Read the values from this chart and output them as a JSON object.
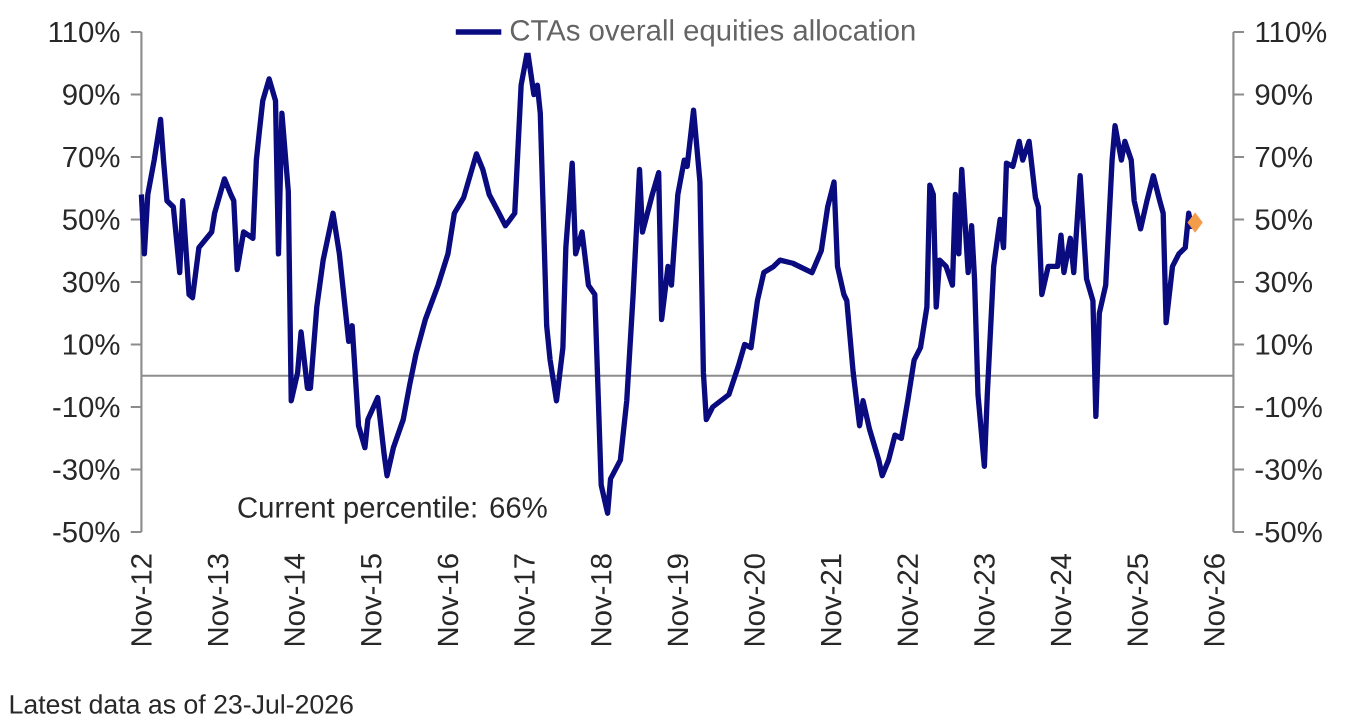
{
  "chart_data": {
    "type": "line",
    "legend": "top",
    "series": [
      {
        "name": "CTAs overall equities allocation",
        "color": "#0b0b80",
        "x": [
          "2012-11-01",
          "2012-11-15",
          "2012-12-01",
          "2013-01-01",
          "2013-02-01",
          "2013-02-15",
          "2013-03-01",
          "2013-04-01",
          "2013-05-01",
          "2013-05-15",
          "2013-06-15",
          "2013-07-01",
          "2013-08-01",
          "2013-10-01",
          "2013-10-15",
          "2013-12-01",
          "2014-01-01",
          "2014-01-15",
          "2014-02-01",
          "2014-03-01",
          "2014-04-15",
          "2014-05-01",
          "2014-05-15",
          "2014-06-01",
          "2014-07-01",
          "2014-08-01",
          "2014-08-15",
          "2014-09-01",
          "2014-10-01",
          "2014-10-15",
          "2014-11-15",
          "2014-12-01",
          "2015-01-01",
          "2015-01-15",
          "2015-02-15",
          "2015-03-15",
          "2015-05-01",
          "2015-06-01",
          "2015-07-15",
          "2015-08-01",
          "2015-09-01",
          "2015-10-01",
          "2015-10-15",
          "2015-12-01",
          "2016-01-01",
          "2016-01-15",
          "2016-02-15",
          "2016-04-01",
          "2016-05-01",
          "2016-06-01",
          "2016-07-15",
          "2016-09-15",
          "2016-11-01",
          "2016-12-01",
          "2017-01-15",
          "2017-02-15",
          "2017-03-15",
          "2017-04-15",
          "2017-05-15",
          "2017-07-01",
          "2017-08-01",
          "2017-09-15",
          "2017-10-15",
          "2017-11-15",
          "2017-12-15",
          "2018-01-01",
          "2018-01-15",
          "2018-02-15",
          "2018-03-01",
          "2018-04-01",
          "2018-05-01",
          "2018-05-15",
          "2018-06-15",
          "2018-07-01",
          "2018-08-01",
          "2018-09-01",
          "2018-10-01",
          "2018-11-01",
          "2018-12-01",
          "2018-12-15",
          "2019-02-01",
          "2019-03-01",
          "2019-04-01",
          "2019-05-01",
          "2019-05-15",
          "2019-07-01",
          "2019-08-01",
          "2019-08-15",
          "2019-09-15",
          "2019-10-01",
          "2019-11-01",
          "2019-12-01",
          "2019-12-15",
          "2020-01-15",
          "2020-02-15",
          "2020-03-01",
          "2020-03-15",
          "2020-04-15",
          "2020-07-01",
          "2020-08-15",
          "2020-09-15",
          "2020-10-15",
          "2020-11-15",
          "2020-12-15",
          "2021-02-01",
          "2021-03-01",
          "2021-05-01",
          "2021-08-01",
          "2021-09-15",
          "2021-10-15",
          "2021-11-15",
          "2021-12-01",
          "2022-01-01",
          "2022-01-15",
          "2022-02-15",
          "2022-03-15",
          "2022-04-01",
          "2022-05-01",
          "2022-06-15",
          "2022-07-01",
          "2022-08-01",
          "2022-09-01",
          "2022-10-01",
          "2022-11-01",
          "2022-12-01",
          "2023-01-01",
          "2023-02-01",
          "2023-02-15",
          "2023-03-01",
          "2023-03-15",
          "2023-04-01",
          "2023-05-01",
          "2023-06-01",
          "2023-06-15",
          "2023-07-01",
          "2023-07-15",
          "2023-08-15",
          "2023-09-01",
          "2023-09-15",
          "2023-10-01",
          "2023-11-01",
          "2023-11-15",
          "2023-12-15",
          "2024-01-15",
          "2024-02-01",
          "2024-02-15",
          "2024-03-15",
          "2024-04-15",
          "2024-05-01",
          "2024-06-01",
          "2024-07-01",
          "2024-07-15",
          "2024-08-01",
          "2024-09-01",
          "2024-10-15",
          "2024-11-01",
          "2024-11-15",
          "2024-12-15",
          "2025-01-01",
          "2025-02-01",
          "2025-03-01",
          "2025-04-01",
          "2025-04-15",
          "2025-05-01",
          "2025-06-01",
          "2025-07-01",
          "2025-07-15",
          "2025-08-15",
          "2025-09-01",
          "2025-10-01",
          "2025-10-15",
          "2025-11-15",
          "2025-12-15",
          "2026-01-15",
          "2026-02-15",
          "2026-03-01",
          "2026-03-15",
          "2026-04-15",
          "2026-05-15",
          "2026-06-15",
          "2026-07-01",
          "2026-07-15"
        ],
        "values": [
          58,
          39,
          58,
          69,
          82,
          69,
          56,
          54,
          33,
          56,
          26,
          25,
          41,
          46,
          52,
          63,
          58,
          56,
          34,
          46,
          44,
          69,
          78,
          88,
          95,
          88,
          39,
          84,
          59,
          -8,
          1,
          14,
          -4,
          -4,
          22,
          37,
          52,
          39,
          11,
          16,
          -16,
          -23,
          -14,
          -7,
          -25,
          -32,
          -23,
          -14,
          -3,
          7,
          18,
          29,
          39,
          52,
          57,
          64,
          71,
          66,
          58,
          52,
          48,
          52,
          93,
          104,
          90,
          93,
          84,
          16,
          5,
          -8,
          9,
          41,
          68,
          39,
          46,
          29,
          26,
          -35,
          -44,
          -33,
          -27,
          -8,
          26,
          66,
          46,
          58,
          65,
          18,
          35,
          29,
          58,
          69,
          67,
          85,
          62,
          1,
          -14,
          -10,
          -6,
          3,
          10,
          9,
          24,
          33,
          35,
          37,
          36,
          33,
          40,
          54,
          62,
          35,
          26,
          24,
          1,
          -16,
          -8,
          -17,
          -27,
          -32,
          -27,
          -19,
          -20,
          -8,
          5,
          9,
          22,
          61,
          58,
          22,
          37,
          35,
          29,
          58,
          39,
          66,
          33,
          48,
          31,
          -6,
          -29,
          -6,
          35,
          50,
          41,
          68,
          67,
          75,
          69,
          75,
          57,
          54,
          26,
          35,
          35,
          45,
          33,
          44,
          33,
          64,
          31,
          24,
          -13,
          20,
          29,
          69,
          80,
          69,
          75,
          69,
          56,
          47,
          56,
          64,
          56,
          52,
          17,
          35,
          39,
          41,
          52,
          47
        ]
      },
      {
        "type": "scatter",
        "marker": "diamond",
        "color": "#f39c4a",
        "x": [
          "2026-08-01"
        ],
        "values": [
          49
        ]
      }
    ],
    "xlim": [
      "2012-11",
      "2027-02"
    ],
    "xticks": [
      {
        "value": "2012-11",
        "label": "Nov-12"
      },
      {
        "value": "2013-11",
        "label": "Nov-13"
      },
      {
        "value": "2014-11",
        "label": "Nov-14"
      },
      {
        "value": "2015-11",
        "label": "Nov-15"
      },
      {
        "value": "2016-11",
        "label": "Nov-16"
      },
      {
        "value": "2017-11",
        "label": "Nov-17"
      },
      {
        "value": "2018-11",
        "label": "Nov-18"
      },
      {
        "value": "2019-11",
        "label": "Nov-19"
      },
      {
        "value": "2020-11",
        "label": "Nov-20"
      },
      {
        "value": "2021-11",
        "label": "Nov-21"
      },
      {
        "value": "2022-11",
        "label": "Nov-22"
      },
      {
        "value": "2023-11",
        "label": "Nov-23"
      },
      {
        "value": "2024-11",
        "label": "Nov-24"
      },
      {
        "value": "2025-11",
        "label": "Nov-25"
      },
      {
        "value": "2026-11",
        "label": "Nov-26"
      }
    ],
    "ylim": [
      -50,
      110
    ],
    "yticks": [
      {
        "value": -50,
        "label": "-50%"
      },
      {
        "value": -30,
        "label": "-30%"
      },
      {
        "value": -10,
        "label": "-10%"
      },
      {
        "value": 10,
        "label": "10%"
      },
      {
        "value": 30,
        "label": "30%"
      },
      {
        "value": 50,
        "label": "50%"
      },
      {
        "value": 70,
        "label": "70%"
      },
      {
        "value": 90,
        "label": "90%"
      },
      {
        "value": 110,
        "label": "110%"
      }
    ],
    "y2lim": [
      -50,
      110
    ],
    "y2ticks": [
      {
        "value": -50,
        "label": "-50%"
      },
      {
        "value": -30,
        "label": "-30%"
      },
      {
        "value": -10,
        "label": "-10%"
      },
      {
        "value": 10,
        "label": "10%"
      },
      {
        "value": 30,
        "label": "30%"
      },
      {
        "value": 50,
        "label": "50%"
      },
      {
        "value": 70,
        "label": "70%"
      },
      {
        "value": 90,
        "label": "90%"
      },
      {
        "value": 110,
        "label": "110%"
      }
    ],
    "ref_lines": [
      {
        "axis": "y",
        "value": 0,
        "color": "#8c8c8c"
      }
    ],
    "annotations": [
      "Current percentile: 66%",
      "Latest data as of 23-Jul-2026"
    ]
  }
}
